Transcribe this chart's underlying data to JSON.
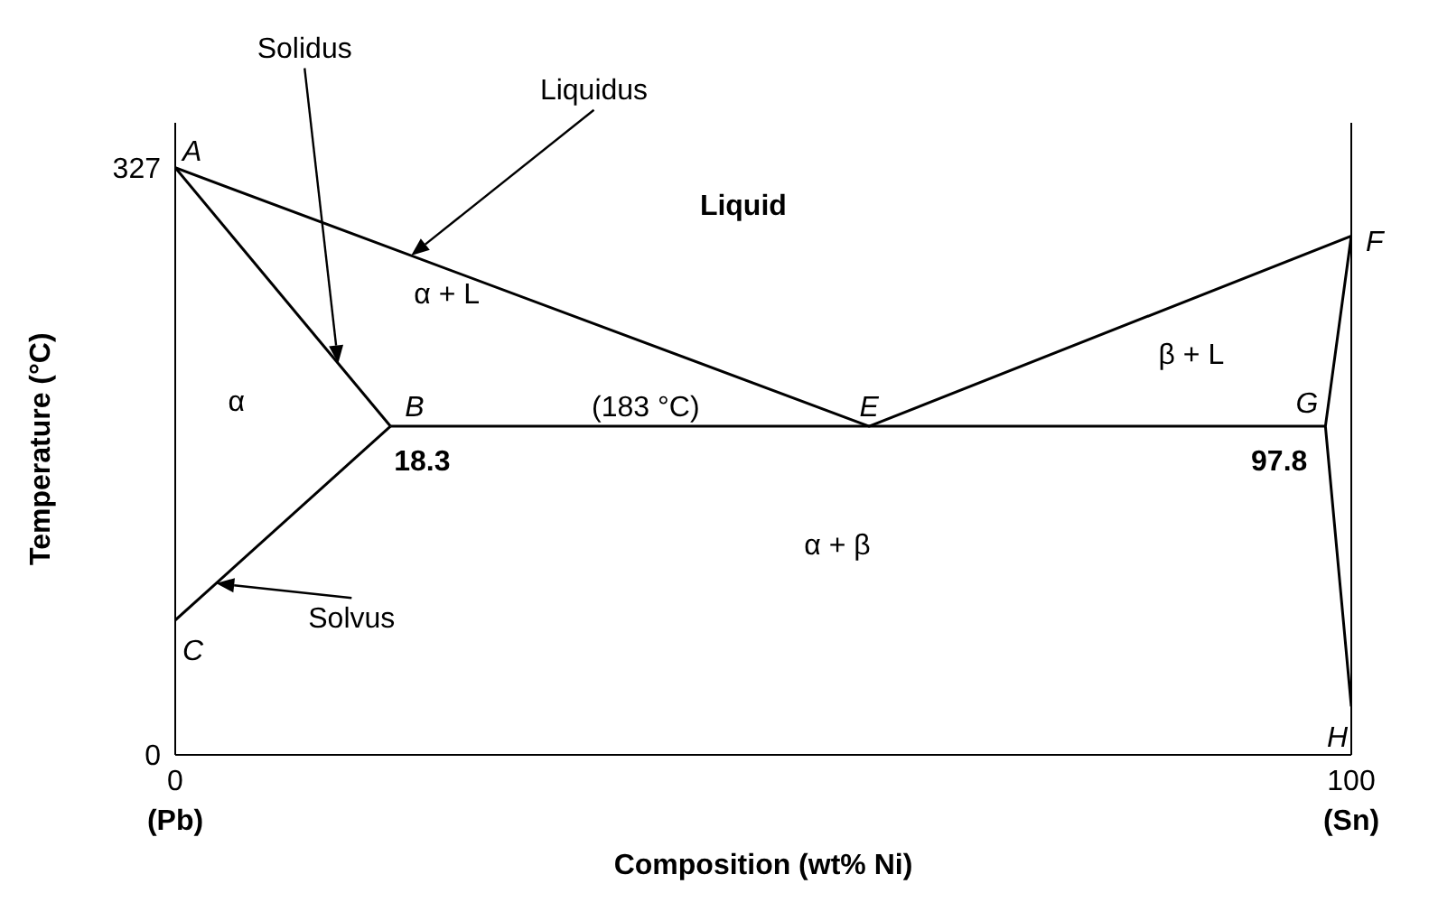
{
  "chart_data": {
    "type": "line",
    "xlabel": "Composition (wt% Ni)",
    "ylabel": "Temperature (°C)",
    "xlim": [
      0,
      100
    ],
    "ylim": [
      0,
      352
    ],
    "xticks": [
      0,
      100
    ],
    "yticks": [
      0,
      327
    ],
    "grid": false,
    "legend": false,
    "series": [
      {
        "color": "#000000",
        "x": [
          0,
          59,
          100
        ],
        "values": [
          327,
          183,
          289
        ]
      },
      {
        "color": "#000000",
        "x": [
          0,
          18.3
        ],
        "values": [
          327,
          183
        ]
      },
      {
        "color": "#000000",
        "x": [
          18.3,
          97.8
        ],
        "values": [
          183,
          183
        ]
      },
      {
        "color": "#000000",
        "x": [
          18.3,
          0
        ],
        "values": [
          183,
          75
        ]
      },
      {
        "color": "#000000",
        "x": [
          100,
          97.8,
          100
        ],
        "values": [
          289,
          183,
          27
        ]
      }
    ],
    "annotations": [
      "Solidus",
      "Liquidus",
      "Solvus",
      {
        "text": "A",
        "x": 0,
        "y": 327
      },
      {
        "text": "B",
        "x": 18.3,
        "y": 183
      },
      {
        "text": "C",
        "x": 0,
        "y": 75
      },
      {
        "text": "E",
        "x": 59,
        "y": 183
      },
      {
        "text": "F",
        "x": 100,
        "y": 289
      },
      {
        "text": "G",
        "x": 97.8,
        "y": 183
      },
      {
        "text": "H",
        "x": 100,
        "y": 27
      },
      "Liquid",
      "α + L",
      "α",
      "β + L",
      "α + β",
      {
        "text": "(183 °C)",
        "x": 40,
        "y": 183
      },
      {
        "text": "18.3",
        "x": 18.3,
        "y": 183
      },
      {
        "text": "97.8",
        "x": 97.8,
        "y": 183
      },
      "(Pb)",
      "(Sn)"
    ]
  }
}
